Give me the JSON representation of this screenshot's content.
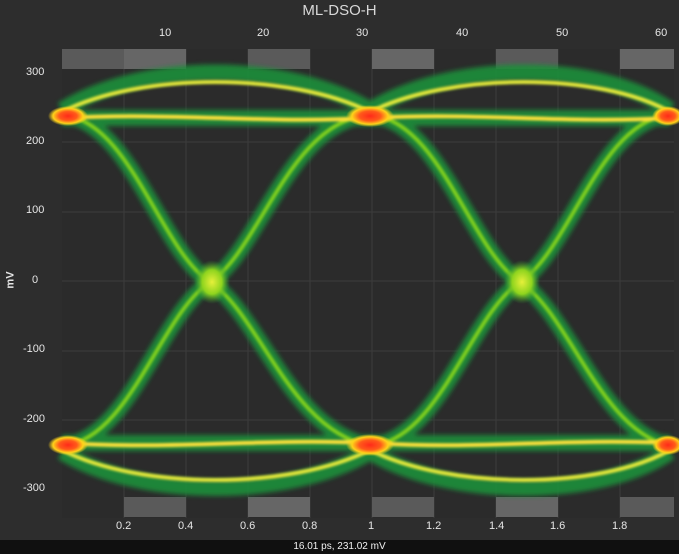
{
  "window": {
    "title": "ML-DSO-H"
  },
  "top_axis": {
    "ticks": [
      "10",
      "20",
      "30",
      "40",
      "50",
      "60"
    ]
  },
  "left_axis": {
    "label": "mV",
    "ticks": [
      "300",
      "200",
      "100",
      "0",
      "-100",
      "-200",
      "-300"
    ]
  },
  "bottom_axis": {
    "ticks": [
      "0.2",
      "0.4",
      "0.6",
      "0.8",
      "1",
      "1.2",
      "1.4",
      "1.6",
      "1.8"
    ]
  },
  "status": {
    "readout": "16.01 ps, 231.02 mV"
  },
  "colors": {
    "background": "#2d2d2d",
    "trace_low": "#1f8f3a",
    "trace_mid": "#8ad21a",
    "trace_high": "#ffe23a",
    "trace_peak": "#ff2a1a"
  }
}
